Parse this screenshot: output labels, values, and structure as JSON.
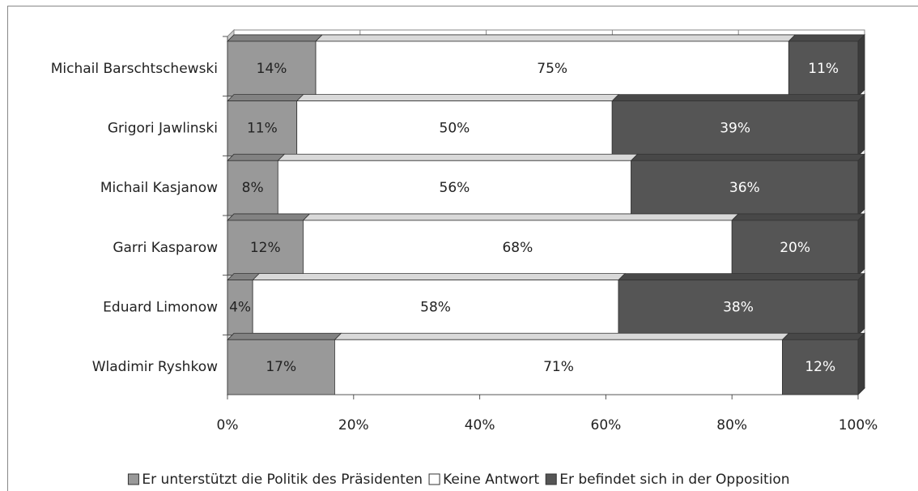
{
  "chart_data": {
    "type": "stacked-bar-horizontal",
    "categories": [
      "Michail Barschtschewski",
      "Grigori Jawlinski",
      "Michail Kasjanow",
      "Garri Kasparow",
      "Eduard Limonow",
      "Wladimir Ryshkow"
    ],
    "series": [
      {
        "name": "Er unterstützt die Politik des Präsidenten",
        "color": "#999999",
        "values": [
          14,
          11,
          8,
          12,
          4,
          17
        ],
        "value_labels": [
          "14%",
          "11%",
          "8%",
          "12%",
          "4%",
          "17%"
        ]
      },
      {
        "name": "Keine Antwort",
        "color": "#ffffff",
        "values": [
          75,
          50,
          56,
          68,
          58,
          71
        ],
        "value_labels": [
          "75%",
          "50%",
          "56%",
          "68%",
          "58%",
          "71%"
        ]
      },
      {
        "name": "Er befindet sich in der Opposition",
        "color": "#555555",
        "values": [
          11,
          39,
          36,
          20,
          38,
          12
        ],
        "value_labels": [
          "11%",
          "39%",
          "36%",
          "20%",
          "38%",
          "12%"
        ]
      }
    ],
    "xlim": [
      0,
      100
    ],
    "xticks": [
      {
        "value": 0,
        "label": "0%"
      },
      {
        "value": 20,
        "label": "20%"
      },
      {
        "value": 40,
        "label": "40%"
      },
      {
        "value": 60,
        "label": "60%"
      },
      {
        "value": 80,
        "label": "80%"
      },
      {
        "value": 100,
        "label": "100%"
      }
    ],
    "grid": true,
    "legend": "bottom"
  }
}
